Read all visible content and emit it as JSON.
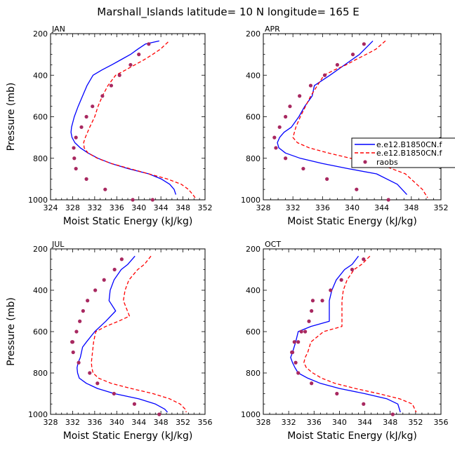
{
  "figure": {
    "title": "Marshall_Islands   latitude=  10 N longitude=  165 E"
  },
  "legend": {
    "entries": [
      {
        "label": "e.e12.B1850CN.f",
        "style": "solid",
        "color": "#0000ff"
      },
      {
        "label": "e.e12.B1850CN.f",
        "style": "dashed",
        "color": "#ff0000"
      },
      {
        "label": "raobs",
        "style": "marker",
        "color": "#a82860"
      }
    ],
    "placement": "right of APR panel"
  },
  "chart_data": [
    {
      "type": "line",
      "title": "JAN",
      "xlabel": "Moist Static Energy (kJ/kg)",
      "ylabel": "Pressure (mb)",
      "xlim": [
        324,
        352
      ],
      "xticks": [
        324,
        328,
        332,
        336,
        340,
        344,
        348,
        352
      ],
      "ylim": [
        1000,
        200
      ],
      "yticks": [
        200,
        400,
        600,
        800,
        1000
      ],
      "grid": false,
      "series": [
        {
          "style": "solid",
          "color": "#0000ff",
          "x": [
            343.7,
            341.2,
            339.8,
            338.5,
            336.8,
            335.1,
            333.3,
            331.7,
            330.6,
            329.8,
            329.0,
            328.3,
            327.8,
            327.7,
            327.9,
            328.4,
            329.4,
            330.8,
            332.6,
            335.0,
            338.1,
            341.8,
            344.1,
            345.6,
            346.4,
            346.7
          ],
          "y": [
            235,
            250,
            275,
            300,
            325,
            350,
            375,
            400,
            450,
            500,
            550,
            600,
            650,
            675,
            700,
            725,
            750,
            775,
            800,
            825,
            850,
            875,
            900,
            925,
            950,
            975
          ]
        },
        {
          "style": "dashed",
          "color": "#ff0000",
          "x": [
            345.3,
            343.9,
            342.5,
            341.0,
            339.3,
            337.6,
            335.8,
            334.4,
            333.4,
            332.6,
            332.0,
            331.1,
            330.3,
            330.0,
            330.1,
            330.8,
            332.5,
            335.0,
            338.4,
            341.8,
            345.2,
            347.7,
            349.0,
            349.8,
            350.2
          ],
          "y": [
            240,
            275,
            300,
            325,
            350,
            375,
            400,
            450,
            500,
            550,
            600,
            650,
            700,
            725,
            750,
            775,
            800,
            825,
            850,
            875,
            900,
            925,
            950,
            975,
            990
          ]
        },
        {
          "style": "marker",
          "color": "#a82860",
          "x": [
            341.8,
            340.0,
            338.5,
            336.5,
            335.0,
            333.4,
            331.6,
            330.5,
            329.6,
            328.6,
            328.2,
            328.3,
            328.6,
            330.5,
            333.9,
            338.9,
            342.5
          ],
          "y": [
            250,
            300,
            350,
            400,
            450,
            500,
            550,
            600,
            650,
            700,
            750,
            800,
            850,
            900,
            950,
            1000,
            1000
          ]
        }
      ]
    },
    {
      "type": "line",
      "title": "APR",
      "xlabel": "Moist Static Energy (kJ/kg)",
      "ylabel": "",
      "xlim": [
        328,
        352
      ],
      "xticks": [
        328,
        332,
        336,
        340,
        344,
        348,
        352
      ],
      "ylim": [
        1000,
        200
      ],
      "yticks": [
        200,
        400,
        600,
        800,
        1000
      ],
      "grid": false,
      "series": [
        {
          "style": "solid",
          "color": "#0000ff",
          "x": [
            342.8,
            341.0,
            339.0,
            337.0,
            334.9,
            334.6,
            333.6,
            332.8,
            331.8,
            330.8,
            330.2,
            329.9,
            330.1,
            331.0,
            333.0,
            336.0,
            339.5,
            343.3,
            346.1,
            347.4
          ],
          "y": [
            235,
            300,
            350,
            400,
            450,
            500,
            550,
            600,
            650,
            675,
            700,
            725,
            750,
            775,
            800,
            825,
            850,
            875,
            925,
            975
          ]
        },
        {
          "style": "dashed",
          "color": "#ff0000",
          "x": [
            344.5,
            343.2,
            341.9,
            340.5,
            339.2,
            337.6,
            336.2,
            335.3,
            334.4,
            333.7,
            333.0,
            332.4,
            332.0,
            332.6,
            334.2,
            336.8,
            339.8,
            343.5,
            347.2,
            349.5,
            350.2
          ],
          "y": [
            235,
            275,
            300,
            325,
            350,
            375,
            400,
            450,
            500,
            550,
            600,
            650,
            700,
            725,
            750,
            775,
            800,
            825,
            875,
            950,
            990
          ]
        },
        {
          "style": "marker",
          "color": "#a82860",
          "x": [
            341.6,
            340.1,
            338.0,
            336.3,
            334.4,
            332.9,
            331.6,
            331.0,
            330.2,
            329.5,
            329.7,
            331.0,
            333.4,
            336.6,
            340.6,
            344.9
          ],
          "y": [
            250,
            300,
            350,
            400,
            450,
            500,
            550,
            600,
            650,
            700,
            750,
            800,
            850,
            900,
            950,
            1000
          ]
        }
      ]
    },
    {
      "type": "line",
      "title": "JUL",
      "xlabel": "Moist Static Energy (kJ/kg)",
      "ylabel": "Pressure (mb)",
      "xlim": [
        328,
        356
      ],
      "xticks": [
        328,
        332,
        336,
        340,
        344,
        348,
        352,
        356
      ],
      "ylim": [
        1000,
        200
      ],
      "yticks": [
        200,
        400,
        600,
        800,
        1000
      ],
      "grid": false,
      "series": [
        {
          "style": "solid",
          "color": "#0000ff",
          "x": [
            343.3,
            342.0,
            340.8,
            339.5,
            338.8,
            338.6,
            339.8,
            338.0,
            336.0,
            334.5,
            333.8,
            333.6,
            333.4,
            333.0,
            332.8,
            332.9,
            333.2,
            334.5,
            336.5,
            339.6,
            344.0,
            347.0,
            348.7,
            349.2
          ],
          "y": [
            235,
            275,
            300,
            350,
            400,
            450,
            500,
            550,
            600,
            650,
            675,
            700,
            725,
            750,
            775,
            800,
            825,
            850,
            875,
            900,
            925,
            950,
            975,
            990
          ]
        },
        {
          "style": "dashed",
          "color": "#ff0000",
          "x": [
            346.2,
            345.0,
            343.8,
            342.2,
            341.5,
            341.2,
            342.3,
            340.3,
            338.0,
            336.2,
            335.8,
            335.6,
            335.4,
            335.5,
            335.7,
            336.7,
            339.0,
            342.6,
            346.6,
            349.6,
            351.5,
            352.4,
            352.6
          ],
          "y": [
            235,
            275,
            300,
            350,
            400,
            450,
            525,
            550,
            575,
            600,
            650,
            700,
            750,
            775,
            800,
            825,
            850,
            875,
            900,
            925,
            950,
            975,
            990
          ]
        },
        {
          "style": "marker",
          "color": "#a82860",
          "x": [
            340.9,
            339.6,
            337.7,
            336.1,
            334.7,
            333.9,
            333.3,
            332.7,
            331.9,
            332.0,
            332.1,
            333.1,
            335.1,
            336.5,
            339.5,
            343.2,
            347.7
          ],
          "y": [
            250,
            300,
            350,
            400,
            450,
            500,
            550,
            600,
            650,
            650,
            700,
            750,
            800,
            850,
            900,
            950,
            1000
          ]
        }
      ]
    },
    {
      "type": "line",
      "title": "OCT",
      "xlabel": "Moist Static Energy (kJ/kg)",
      "ylabel": "",
      "xlim": [
        328,
        356
      ],
      "xticks": [
        328,
        332,
        336,
        340,
        344,
        348,
        352,
        356
      ],
      "ylim": [
        1000,
        200
      ],
      "yticks": [
        200,
        400,
        600,
        800,
        1000
      ],
      "grid": false,
      "series": [
        {
          "style": "solid",
          "color": "#0000ff",
          "x": [
            343.0,
            342.0,
            340.8,
            339.5,
            338.8,
            338.4,
            338.4,
            338.4,
            335.5,
            333.5,
            333.1,
            332.6,
            332.3,
            332.6,
            333.0,
            333.5,
            335.0,
            337.0,
            340.0,
            344.0,
            347.5,
            349.2,
            349.6
          ],
          "y": [
            235,
            275,
            300,
            350,
            400,
            450,
            500,
            550,
            575,
            600,
            650,
            700,
            725,
            750,
            775,
            800,
            825,
            850,
            875,
            900,
            925,
            950,
            990
          ]
        },
        {
          "style": "dashed",
          "color": "#ff0000",
          "x": [
            344.8,
            343.5,
            342.3,
            341.2,
            340.6,
            340.4,
            340.4,
            340.4,
            337.5,
            335.5,
            335.0,
            334.6,
            334.4,
            334.8,
            335.8,
            337.2,
            339.3,
            342.5,
            346.2,
            349.5,
            351.5,
            352.1
          ],
          "y": [
            235,
            275,
            300,
            350,
            400,
            450,
            500,
            575,
            600,
            650,
            700,
            725,
            750,
            775,
            800,
            825,
            850,
            875,
            900,
            925,
            950,
            990
          ]
        },
        {
          "style": "marker",
          "color": "#a82860",
          "x": [
            343.8,
            342.0,
            340.3,
            338.6,
            337.3,
            335.8,
            335.6,
            335.2,
            334.6,
            334.0,
            333.5,
            332.9,
            332.6,
            332.5,
            333.1,
            333.5,
            335.6,
            339.6,
            343.8,
            348.4
          ],
          "y": [
            250,
            300,
            350,
            400,
            450,
            450,
            500,
            550,
            600,
            600,
            650,
            650,
            700,
            700,
            750,
            800,
            850,
            900,
            950,
            1000
          ]
        }
      ]
    }
  ]
}
